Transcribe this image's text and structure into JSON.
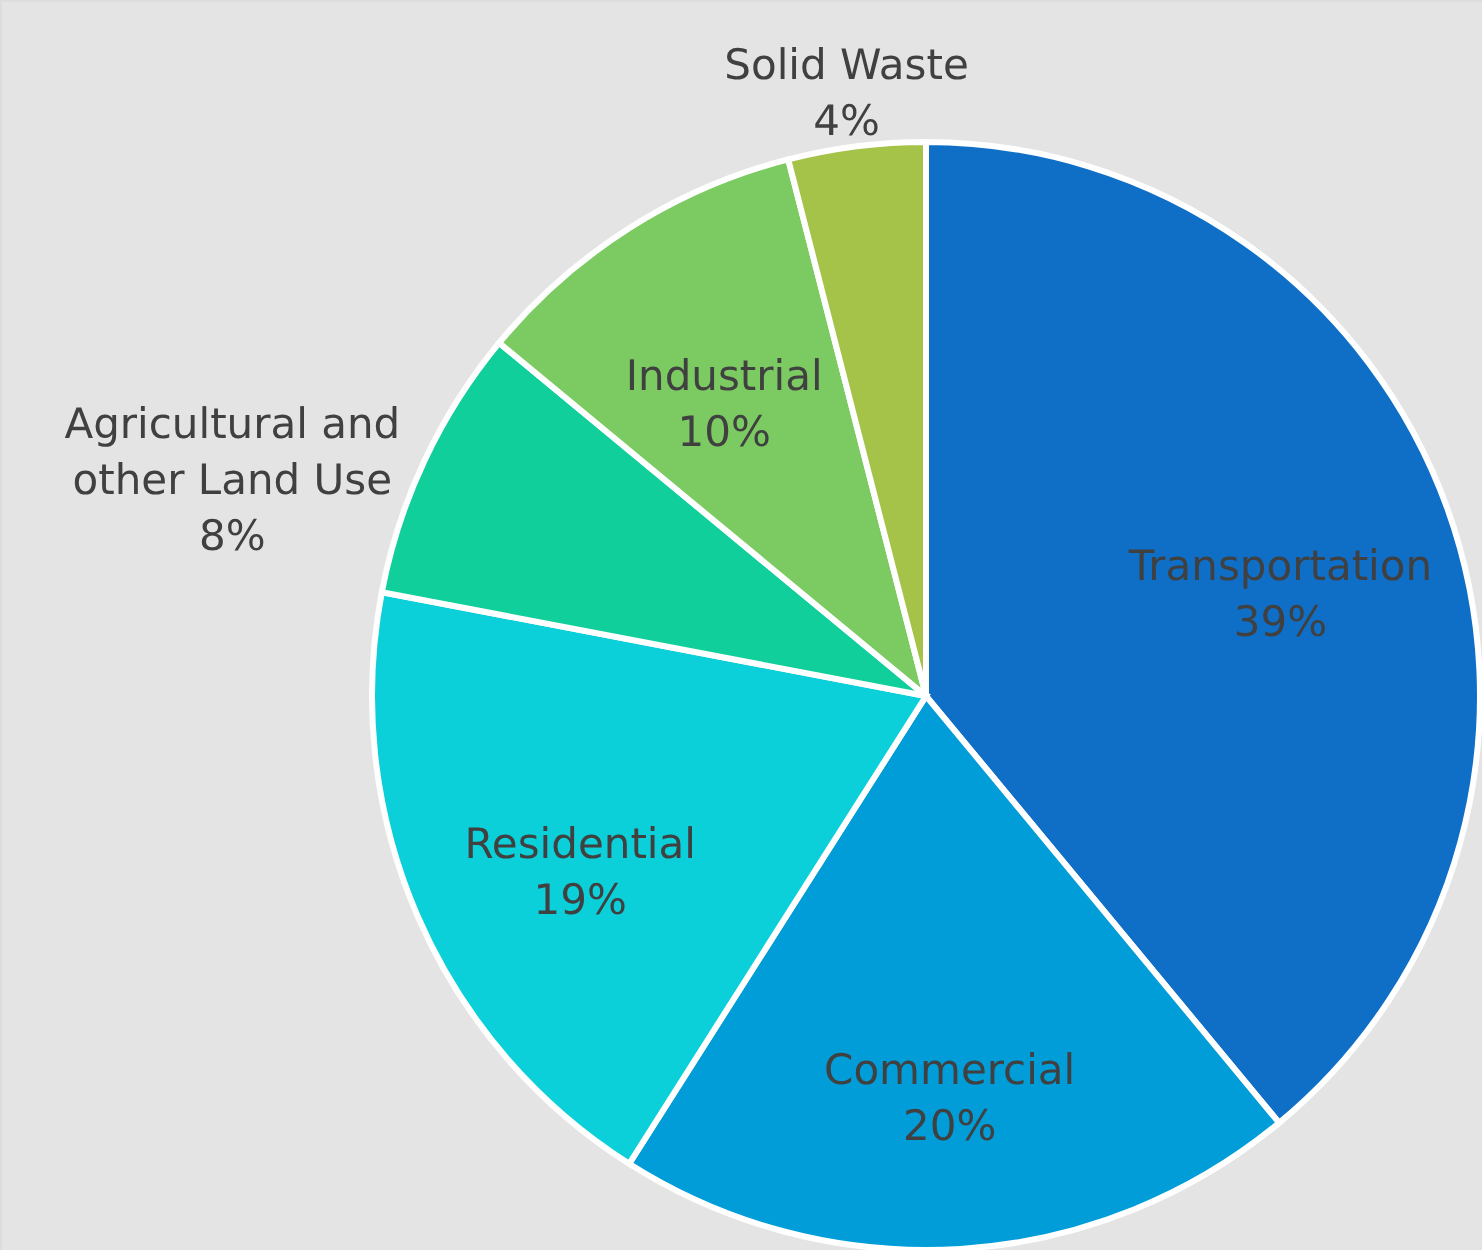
{
  "chart_data": {
    "type": "pie",
    "categories": [
      "Transportation",
      "Commercial",
      "Residential",
      "Agricultural and other Land Use",
      "Industrial",
      "Solid Waste"
    ],
    "values": [
      39,
      20,
      19,
      8,
      10,
      4
    ],
    "colors": [
      "#0f6fc6",
      "#009dd9",
      "#0bd0d9",
      "#10cf9b",
      "#7cca62",
      "#a5c249"
    ],
    "value_labels": [
      "39%",
      "20%",
      "19%",
      "8%",
      "10%",
      "4%"
    ]
  }
}
